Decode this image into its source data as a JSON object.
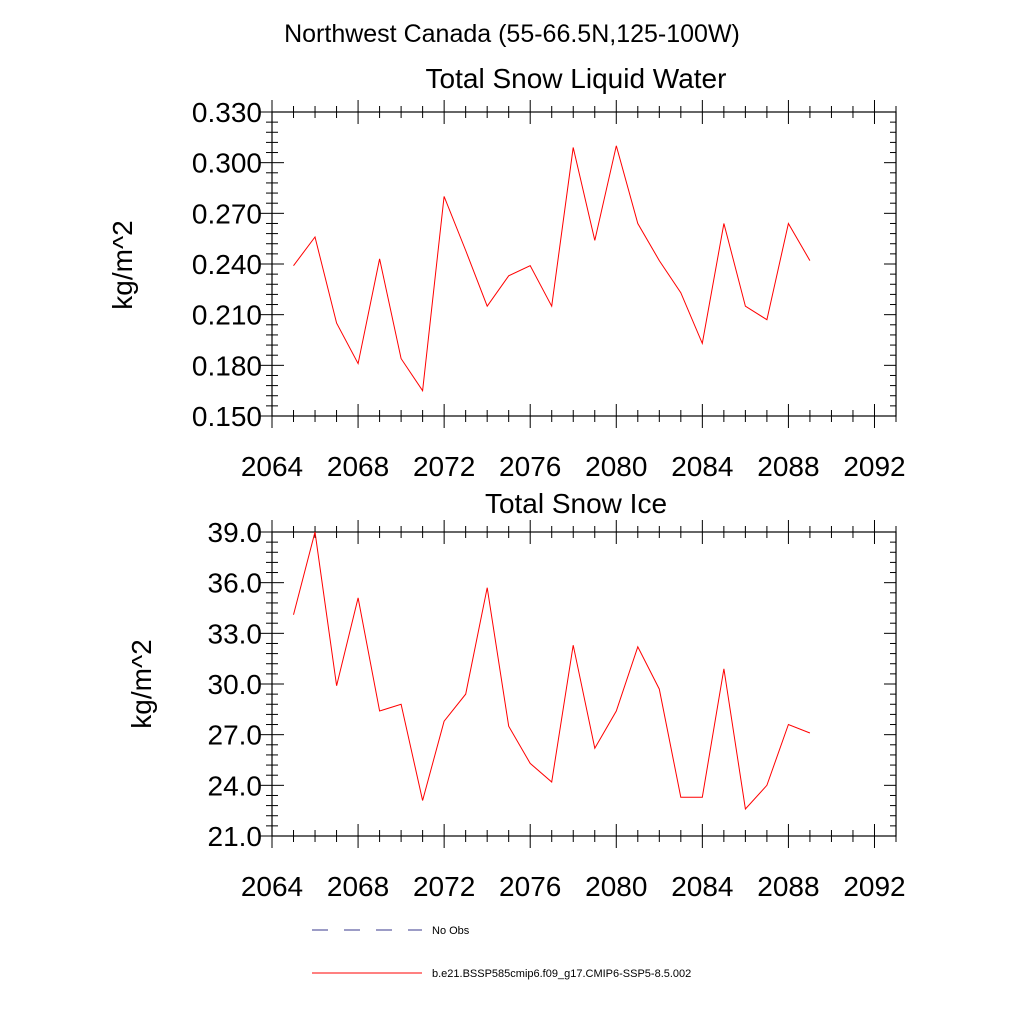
{
  "figure": {
    "suptitle": "Northwest Canada (55-66.5N,125-100W)"
  },
  "colors": {
    "series_line": "#ff0000",
    "obs_line": "#3a3a8c",
    "axes": "#000000",
    "background": "#ffffff"
  },
  "legend": {
    "placement": "bottom",
    "entries": [
      {
        "label": "No Obs",
        "style": "dashed",
        "color": "#3a3a8c"
      },
      {
        "label": "b.e21.BSSP585cmip6.f09_g17.CMIP6-SSP5-8.5.002",
        "style": "solid",
        "color": "#ff0000"
      }
    ]
  },
  "chart_data": [
    {
      "type": "line",
      "title": "Total Snow Liquid Water",
      "xlabel": "",
      "ylabel": "kg/m^2",
      "xlim": [
        2064,
        2093
      ],
      "ylim": [
        0.15,
        0.33
      ],
      "xticks": [
        "2064",
        "2068",
        "2072",
        "2076",
        "2080",
        "2084",
        "2088",
        "2092"
      ],
      "yticks": [
        "0.150",
        "0.180",
        "0.210",
        "0.240",
        "0.270",
        "0.300",
        "0.330"
      ],
      "grid": false,
      "x": [
        2065,
        2066,
        2067,
        2068,
        2069,
        2070,
        2071,
        2072,
        2073,
        2074,
        2075,
        2076,
        2077,
        2078,
        2079,
        2080,
        2081,
        2082,
        2083,
        2084,
        2085,
        2086,
        2087,
        2088,
        2089
      ],
      "series": [
        {
          "name": "b.e21.BSSP585cmip6.f09_g17.CMIP6-SSP5-8.5.002",
          "values": [
            0.239,
            0.256,
            0.205,
            0.181,
            0.243,
            0.184,
            0.165,
            0.28,
            0.248,
            0.215,
            0.233,
            0.239,
            0.215,
            0.309,
            0.254,
            0.31,
            0.264,
            0.242,
            0.223,
            0.193,
            0.264,
            0.215,
            0.207,
            0.264,
            0.242
          ]
        }
      ]
    },
    {
      "type": "line",
      "title": "Total Snow Ice",
      "xlabel": "",
      "ylabel": "kg/m^2",
      "xlim": [
        2064,
        2093
      ],
      "ylim": [
        21.0,
        39.0
      ],
      "xticks": [
        "2064",
        "2068",
        "2072",
        "2076",
        "2080",
        "2084",
        "2088",
        "2092"
      ],
      "yticks": [
        "21.0",
        "24.0",
        "27.0",
        "30.0",
        "33.0",
        "36.0",
        "39.0"
      ],
      "grid": false,
      "x": [
        2065,
        2066,
        2067,
        2068,
        2069,
        2070,
        2071,
        2072,
        2073,
        2074,
        2075,
        2076,
        2077,
        2078,
        2079,
        2080,
        2081,
        2082,
        2083,
        2084,
        2085,
        2086,
        2087,
        2088,
        2089
      ],
      "series": [
        {
          "name": "b.e21.BSSP585cmip6.f09_g17.CMIP6-SSP5-8.5.002",
          "values": [
            34.1,
            39.0,
            29.9,
            35.1,
            28.4,
            28.8,
            23.1,
            27.8,
            29.4,
            35.7,
            27.5,
            25.3,
            24.2,
            32.3,
            26.2,
            28.4,
            32.2,
            29.7,
            23.3,
            23.3,
            30.9,
            22.6,
            24.0,
            27.6,
            27.1
          ]
        }
      ]
    }
  ]
}
